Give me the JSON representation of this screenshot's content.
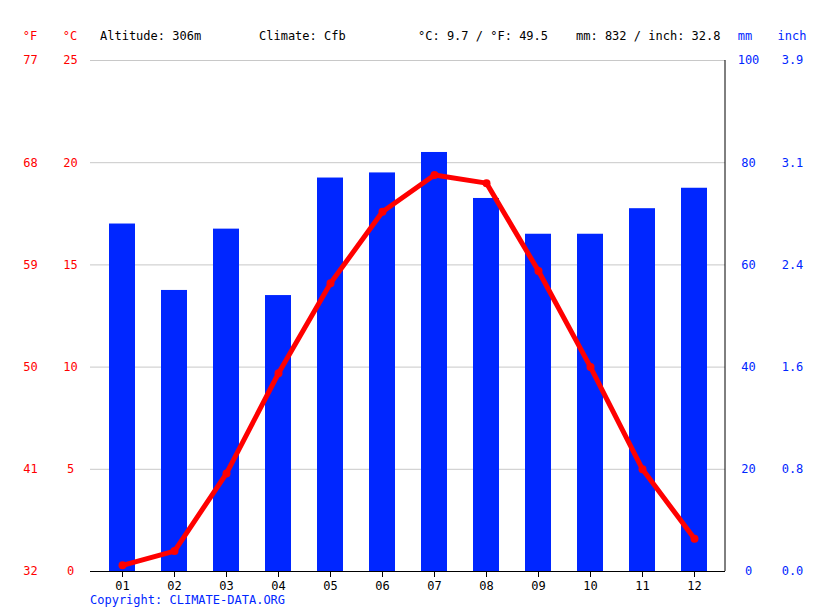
{
  "chart_data": {
    "type": "bar",
    "annotations": [
      "Altitude: 306m",
      "Climate: Cfb",
      "°C: 9.7 / °F: 49.5",
      "mm: 832 / inch: 32.8"
    ],
    "caption": "Copyright: CLIMATE-DATA.ORG",
    "categories": [
      "01",
      "02",
      "03",
      "04",
      "05",
      "06",
      "07",
      "08",
      "09",
      "10",
      "11",
      "12"
    ],
    "series": [
      {
        "type": "bar",
        "axis": "y2",
        "color": "#0026ff",
        "values": [
          68,
          55,
          67,
          54,
          77,
          78,
          82,
          73,
          66,
          66,
          71,
          75
        ]
      },
      {
        "type": "line",
        "color": "#ff0000",
        "marker": "circle",
        "values": [
          0.3,
          1.0,
          4.8,
          9.7,
          14.1,
          17.6,
          19.4,
          19.0,
          14.7,
          10.0,
          5.0,
          1.6
        ]
      }
    ],
    "ylabel": "°C",
    "ylim": [
      0,
      25
    ],
    "yticks": [
      0,
      5,
      10,
      15,
      20,
      25
    ],
    "ylabel_alt": "°F",
    "yticks_alt": [
      {
        "value": 0,
        "label": "32"
      },
      {
        "value": 5,
        "label": "41"
      },
      {
        "value": 10,
        "label": "50"
      },
      {
        "value": 15,
        "label": "59"
      },
      {
        "value": 20,
        "label": "68"
      },
      {
        "value": 25,
        "label": "77"
      }
    ],
    "y2label": "mm",
    "y2lim": [
      0,
      100
    ],
    "y2ticks": [
      0,
      20,
      40,
      60,
      80,
      100
    ],
    "y2label_alt": "inch",
    "y2ticks_alt": [
      {
        "value": 0,
        "label": "0.0"
      },
      {
        "value": 20,
        "label": "0.8"
      },
      {
        "value": 40,
        "label": "1.6"
      },
      {
        "value": 60,
        "label": "2.4"
      },
      {
        "value": 80,
        "label": "3.1"
      },
      {
        "value": 100,
        "label": "3.9"
      }
    ],
    "grid": true
  }
}
